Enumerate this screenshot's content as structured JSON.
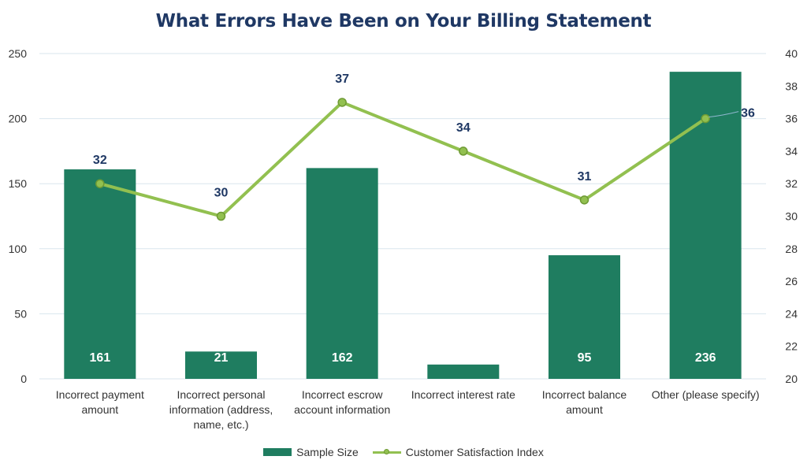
{
  "chart_data": {
    "type": "bar",
    "title": "What Errors Have Been on Your Billing Statement",
    "categories": [
      [
        "Incorrect payment",
        "amount"
      ],
      [
        "Incorrect personal",
        "information (address,",
        "name, etc.)"
      ],
      [
        "Incorrect escrow",
        "account information"
      ],
      [
        "Incorrect interest rate"
      ],
      [
        "Incorrect balance",
        "amount"
      ],
      [
        "Other (please specify)"
      ]
    ],
    "series": [
      {
        "name": "Sample Size",
        "type": "bar",
        "axis": "left",
        "color": "#1f7d60",
        "values": [
          161,
          21,
          162,
          11,
          95,
          236
        ]
      },
      {
        "name": "Customer Satisfaction Index",
        "type": "line",
        "axis": "right",
        "color": "#92c050",
        "values": [
          32,
          30,
          37,
          34,
          31,
          36
        ]
      }
    ],
    "y_left": {
      "min": 0,
      "max": 250,
      "ticks": [
        0,
        50,
        100,
        150,
        200,
        250
      ]
    },
    "y_right": {
      "min": 20,
      "max": 40,
      "ticks": [
        20,
        22,
        24,
        26,
        28,
        30,
        32,
        34,
        36,
        38,
        40
      ]
    },
    "grid": true,
    "legend_position": "bottom",
    "colors": {
      "title": "#1f3864",
      "line_label": "#1f3864",
      "bar_label": "#ffffff",
      "gridline": "#d9e6ee",
      "axis_text": "#333333"
    }
  }
}
